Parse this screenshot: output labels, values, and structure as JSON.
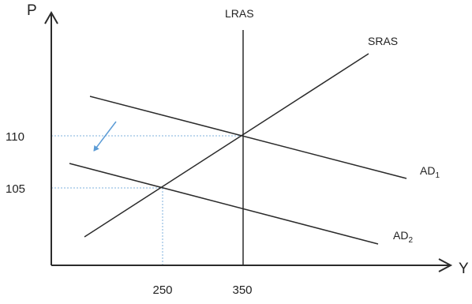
{
  "axes": {
    "y_label": "P",
    "x_label": "Y"
  },
  "ticks": {
    "y": [
      "110",
      "105"
    ],
    "x": [
      "250",
      "350"
    ]
  },
  "curves": {
    "lras": "LRAS",
    "sras": "SRAS",
    "ad1_base": "AD",
    "ad1_sub": "1",
    "ad2_base": "AD",
    "ad2_sub": "2"
  },
  "colors": {
    "line": "#2b2b2b",
    "guide": "#7fb2dc",
    "arrow": "#5b9bd5"
  },
  "icons": {
    "shift_arrow": "arrow-down-left-icon"
  }
}
